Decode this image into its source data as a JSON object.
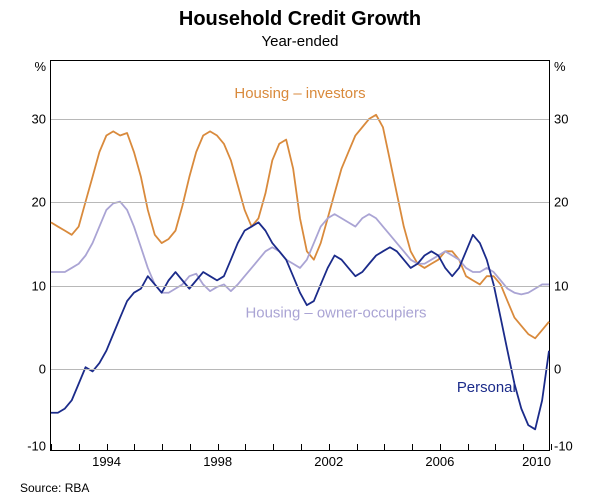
{
  "chart": {
    "type": "line",
    "title": "Household Credit Growth",
    "subtitle": "Year-ended",
    "source": "Source: RBA",
    "unit": "%",
    "background_color": "#ffffff",
    "grid_color": "#b8b8b8",
    "axis_color": "#000000",
    "title_fontsize": 20,
    "subtitle_fontsize": 15,
    "label_fontsize": 13,
    "ylim": [
      -10,
      37
    ],
    "yticks": [
      -10,
      0,
      10,
      20,
      30
    ],
    "xlim": [
      1992,
      2010
    ],
    "xticks": [
      1994,
      1998,
      2002,
      2006,
      2010
    ],
    "xtick_minor_step": 1,
    "line_width": 1.8,
    "series": [
      {
        "name": "Housing – investors",
        "color": "#d98a3c",
        "label_pos": {
          "x": 2001.0,
          "y": 32.5,
          "anchor": "middle"
        },
        "data": [
          [
            1992.0,
            17.5
          ],
          [
            1992.25,
            17.0
          ],
          [
            1992.5,
            16.5
          ],
          [
            1992.75,
            16.0
          ],
          [
            1993.0,
            17.0
          ],
          [
            1993.25,
            20.0
          ],
          [
            1993.5,
            23.0
          ],
          [
            1993.75,
            26.0
          ],
          [
            1994.0,
            28.0
          ],
          [
            1994.25,
            28.5
          ],
          [
            1994.5,
            28.0
          ],
          [
            1994.75,
            28.3
          ],
          [
            1995.0,
            26.0
          ],
          [
            1995.25,
            23.0
          ],
          [
            1995.5,
            19.0
          ],
          [
            1995.75,
            16.0
          ],
          [
            1996.0,
            15.0
          ],
          [
            1996.25,
            15.5
          ],
          [
            1996.5,
            16.5
          ],
          [
            1996.75,
            19.5
          ],
          [
            1997.0,
            23.0
          ],
          [
            1997.25,
            26.0
          ],
          [
            1997.5,
            28.0
          ],
          [
            1997.75,
            28.5
          ],
          [
            1998.0,
            28.0
          ],
          [
            1998.25,
            27.0
          ],
          [
            1998.5,
            25.0
          ],
          [
            1998.75,
            22.0
          ],
          [
            1999.0,
            19.0
          ],
          [
            1999.25,
            17.0
          ],
          [
            1999.5,
            18.0
          ],
          [
            1999.75,
            21.0
          ],
          [
            2000.0,
            25.0
          ],
          [
            2000.25,
            27.0
          ],
          [
            2000.5,
            27.5
          ],
          [
            2000.75,
            24.0
          ],
          [
            2001.0,
            18.0
          ],
          [
            2001.25,
            14.0
          ],
          [
            2001.5,
            13.0
          ],
          [
            2001.75,
            15.0
          ],
          [
            2002.0,
            18.0
          ],
          [
            2002.25,
            21.0
          ],
          [
            2002.5,
            24.0
          ],
          [
            2002.75,
            26.0
          ],
          [
            2003.0,
            28.0
          ],
          [
            2003.25,
            29.0
          ],
          [
            2003.5,
            30.0
          ],
          [
            2003.75,
            30.5
          ],
          [
            2004.0,
            29.0
          ],
          [
            2004.25,
            25.0
          ],
          [
            2004.5,
            21.0
          ],
          [
            2004.75,
            17.0
          ],
          [
            2005.0,
            14.0
          ],
          [
            2005.25,
            12.5
          ],
          [
            2005.5,
            12.0
          ],
          [
            2005.75,
            12.5
          ],
          [
            2006.0,
            13.0
          ],
          [
            2006.25,
            14.0
          ],
          [
            2006.5,
            14.0
          ],
          [
            2006.75,
            13.0
          ],
          [
            2007.0,
            11.0
          ],
          [
            2007.25,
            10.5
          ],
          [
            2007.5,
            10.0
          ],
          [
            2007.75,
            11.0
          ],
          [
            2008.0,
            11.0
          ],
          [
            2008.25,
            10.0
          ],
          [
            2008.5,
            8.0
          ],
          [
            2008.75,
            6.0
          ],
          [
            2009.0,
            5.0
          ],
          [
            2009.25,
            4.0
          ],
          [
            2009.5,
            3.5
          ],
          [
            2009.75,
            4.5
          ],
          [
            2010.0,
            5.5
          ]
        ]
      },
      {
        "name": "Housing – owner-occupiers",
        "color": "#aaa4d4",
        "label_pos": {
          "x": 2002.3,
          "y": 6.0,
          "anchor": "middle"
        },
        "data": [
          [
            1992.0,
            11.5
          ],
          [
            1992.25,
            11.5
          ],
          [
            1992.5,
            11.5
          ],
          [
            1992.75,
            12.0
          ],
          [
            1993.0,
            12.5
          ],
          [
            1993.25,
            13.5
          ],
          [
            1993.5,
            15.0
          ],
          [
            1993.75,
            17.0
          ],
          [
            1994.0,
            19.0
          ],
          [
            1994.25,
            19.8
          ],
          [
            1994.5,
            20.0
          ],
          [
            1994.75,
            19.0
          ],
          [
            1995.0,
            17.0
          ],
          [
            1995.25,
            14.5
          ],
          [
            1995.5,
            12.0
          ],
          [
            1995.75,
            10.0
          ],
          [
            1996.0,
            9.0
          ],
          [
            1996.25,
            9.0
          ],
          [
            1996.5,
            9.5
          ],
          [
            1996.75,
            10.0
          ],
          [
            1997.0,
            11.0
          ],
          [
            1997.25,
            11.3
          ],
          [
            1997.5,
            10.0
          ],
          [
            1997.75,
            9.2
          ],
          [
            1998.0,
            9.7
          ],
          [
            1998.25,
            10.0
          ],
          [
            1998.5,
            9.2
          ],
          [
            1998.75,
            10.0
          ],
          [
            1999.0,
            11.0
          ],
          [
            1999.25,
            12.0
          ],
          [
            1999.5,
            13.0
          ],
          [
            1999.75,
            14.0
          ],
          [
            2000.0,
            14.5
          ],
          [
            2000.25,
            14.0
          ],
          [
            2000.5,
            13.0
          ],
          [
            2000.75,
            12.5
          ],
          [
            2001.0,
            12.0
          ],
          [
            2001.25,
            13.0
          ],
          [
            2001.5,
            15.0
          ],
          [
            2001.75,
            17.0
          ],
          [
            2002.0,
            18.0
          ],
          [
            2002.25,
            18.5
          ],
          [
            2002.5,
            18.0
          ],
          [
            2002.75,
            17.5
          ],
          [
            2003.0,
            17.0
          ],
          [
            2003.25,
            18.0
          ],
          [
            2003.5,
            18.5
          ],
          [
            2003.75,
            18.0
          ],
          [
            2004.0,
            17.0
          ],
          [
            2004.25,
            16.0
          ],
          [
            2004.5,
            15.0
          ],
          [
            2004.75,
            14.0
          ],
          [
            2005.0,
            13.0
          ],
          [
            2005.25,
            12.5
          ],
          [
            2005.5,
            12.5
          ],
          [
            2005.75,
            13.0
          ],
          [
            2006.0,
            13.5
          ],
          [
            2006.25,
            14.0
          ],
          [
            2006.5,
            13.5
          ],
          [
            2006.75,
            13.0
          ],
          [
            2007.0,
            12.0
          ],
          [
            2007.25,
            11.5
          ],
          [
            2007.5,
            11.5
          ],
          [
            2007.75,
            12.0
          ],
          [
            2008.0,
            11.5
          ],
          [
            2008.25,
            10.5
          ],
          [
            2008.5,
            9.5
          ],
          [
            2008.75,
            9.0
          ],
          [
            2009.0,
            8.8
          ],
          [
            2009.25,
            9.0
          ],
          [
            2009.5,
            9.5
          ],
          [
            2009.75,
            10.0
          ],
          [
            2010.0,
            10.0
          ]
        ]
      },
      {
        "name": "Personal",
        "color": "#1b2b8a",
        "label_pos": {
          "x": 2008.8,
          "y": -3.0,
          "anchor": "end"
        },
        "data": [
          [
            1992.0,
            -5.5
          ],
          [
            1992.25,
            -5.5
          ],
          [
            1992.5,
            -5.0
          ],
          [
            1992.75,
            -4.0
          ],
          [
            1993.0,
            -2.0
          ],
          [
            1993.25,
            0.0
          ],
          [
            1993.5,
            -0.5
          ],
          [
            1993.75,
            0.5
          ],
          [
            1994.0,
            2.0
          ],
          [
            1994.25,
            4.0
          ],
          [
            1994.5,
            6.0
          ],
          [
            1994.75,
            8.0
          ],
          [
            1995.0,
            9.0
          ],
          [
            1995.25,
            9.5
          ],
          [
            1995.5,
            11.0
          ],
          [
            1995.75,
            10.0
          ],
          [
            1996.0,
            9.0
          ],
          [
            1996.25,
            10.5
          ],
          [
            1996.5,
            11.5
          ],
          [
            1996.75,
            10.5
          ],
          [
            1997.0,
            9.5
          ],
          [
            1997.25,
            10.5
          ],
          [
            1997.5,
            11.5
          ],
          [
            1997.75,
            11.0
          ],
          [
            1998.0,
            10.5
          ],
          [
            1998.25,
            11.0
          ],
          [
            1998.5,
            13.0
          ],
          [
            1998.75,
            15.0
          ],
          [
            1999.0,
            16.5
          ],
          [
            1999.25,
            17.0
          ],
          [
            1999.5,
            17.5
          ],
          [
            1999.75,
            16.5
          ],
          [
            2000.0,
            15.0
          ],
          [
            2000.25,
            14.0
          ],
          [
            2000.5,
            13.0
          ],
          [
            2000.75,
            11.0
          ],
          [
            2001.0,
            9.0
          ],
          [
            2001.25,
            7.5
          ],
          [
            2001.5,
            8.0
          ],
          [
            2001.75,
            10.0
          ],
          [
            2002.0,
            12.0
          ],
          [
            2002.25,
            13.5
          ],
          [
            2002.5,
            13.0
          ],
          [
            2002.75,
            12.0
          ],
          [
            2003.0,
            11.0
          ],
          [
            2003.25,
            11.5
          ],
          [
            2003.5,
            12.5
          ],
          [
            2003.75,
            13.5
          ],
          [
            2004.0,
            14.0
          ],
          [
            2004.25,
            14.5
          ],
          [
            2004.5,
            14.0
          ],
          [
            2004.75,
            13.0
          ],
          [
            2005.0,
            12.0
          ],
          [
            2005.25,
            12.5
          ],
          [
            2005.5,
            13.5
          ],
          [
            2005.75,
            14.0
          ],
          [
            2006.0,
            13.5
          ],
          [
            2006.25,
            12.0
          ],
          [
            2006.5,
            11.0
          ],
          [
            2006.75,
            12.0
          ],
          [
            2007.0,
            14.0
          ],
          [
            2007.25,
            16.0
          ],
          [
            2007.5,
            15.0
          ],
          [
            2007.75,
            13.0
          ],
          [
            2008.0,
            10.0
          ],
          [
            2008.25,
            6.0
          ],
          [
            2008.5,
            2.0
          ],
          [
            2008.75,
            -2.0
          ],
          [
            2009.0,
            -5.0
          ],
          [
            2009.25,
            -7.0
          ],
          [
            2009.5,
            -7.5
          ],
          [
            2009.75,
            -4.0
          ],
          [
            2010.0,
            2.0
          ]
        ]
      }
    ]
  }
}
